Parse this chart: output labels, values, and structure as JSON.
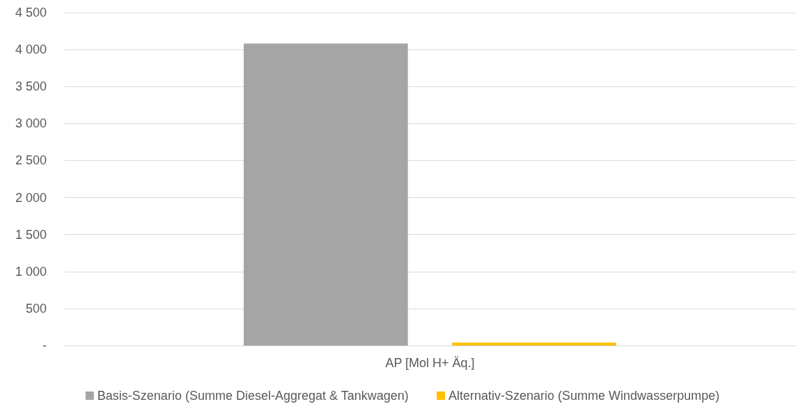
{
  "chart_data": {
    "type": "bar",
    "categories": [
      "AP [Mol H+ Äq.]"
    ],
    "series": [
      {
        "name": "Basis-Szenario (Summe Diesel-Aggregat & Tankwagen)",
        "color": "#a5a5a5",
        "values": [
          4080
        ]
      },
      {
        "name": "Alternativ-Szenario (Summe Windwasserpumpe)",
        "color": "#ffc000",
        "values": [
          40
        ]
      }
    ],
    "ylim": [
      0,
      4500
    ],
    "yticks": [
      {
        "value": 0,
        "label": "-"
      },
      {
        "value": 500,
        "label": "500"
      },
      {
        "value": 1000,
        "label": "1 000"
      },
      {
        "value": 1500,
        "label": "1 500"
      },
      {
        "value": 2000,
        "label": "2 000"
      },
      {
        "value": 2500,
        "label": "2 500"
      },
      {
        "value": 3000,
        "label": "3 000"
      },
      {
        "value": 3500,
        "label": "3 500"
      },
      {
        "value": 4000,
        "label": "4 000"
      },
      {
        "value": 4500,
        "label": "4 500"
      }
    ],
    "grid": "y",
    "legend": "bottom"
  }
}
